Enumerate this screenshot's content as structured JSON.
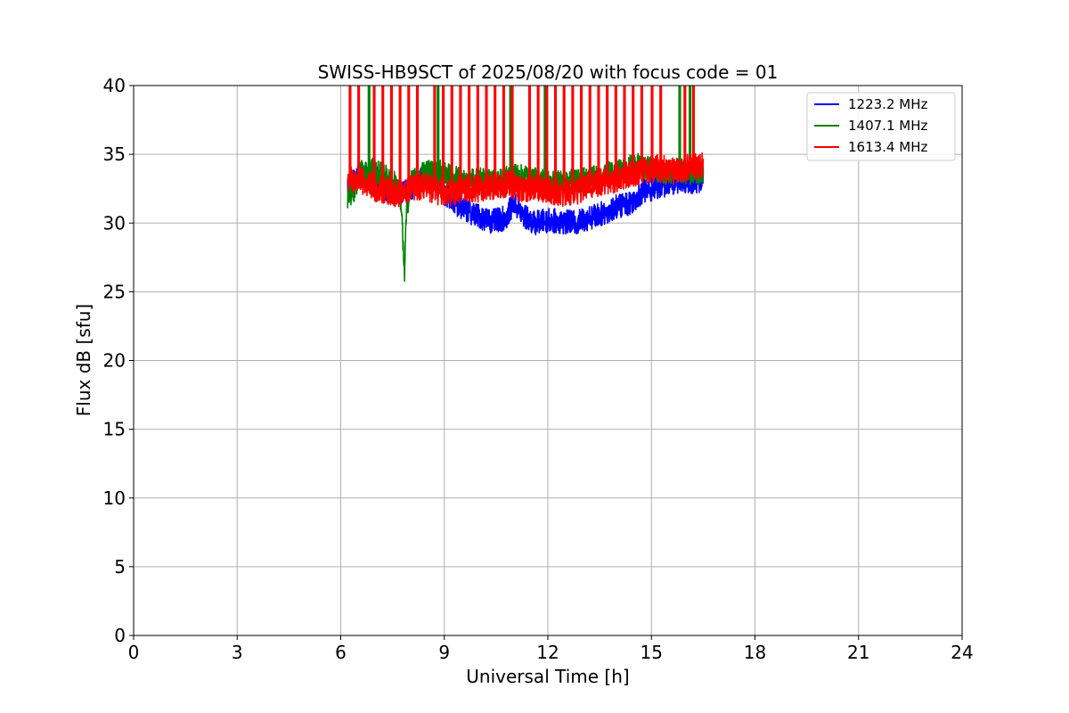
{
  "chart_data": {
    "type": "line",
    "title": "SWISS-HB9SCT of 2025/08/20 with focus code = 01",
    "xlabel": "Universal Time [h]",
    "ylabel": "Flux dB [sfu]",
    "xlim": [
      0,
      24
    ],
    "ylim": [
      0,
      40
    ],
    "xticks": [
      0,
      3,
      6,
      9,
      12,
      15,
      18,
      21,
      24
    ],
    "yticks": [
      0,
      5,
      10,
      15,
      20,
      25,
      30,
      35,
      40
    ],
    "grid": true,
    "legend_position": "top-right",
    "x_start": 6.2,
    "x_end": 16.5,
    "series": [
      {
        "name": "1223.2 MHz",
        "color": "#0000ff",
        "points": [
          [
            6.2,
            32.8
          ],
          [
            6.6,
            33.5
          ],
          [
            7.0,
            33.4
          ],
          [
            7.4,
            32.3
          ],
          [
            7.8,
            32.2
          ],
          [
            8.0,
            32.5
          ],
          [
            8.4,
            33.4
          ],
          [
            8.8,
            33.3
          ],
          [
            9.0,
            32.2
          ],
          [
            9.3,
            31.5
          ],
          [
            9.6,
            31.0
          ],
          [
            10.0,
            30.5
          ],
          [
            10.4,
            30.1
          ],
          [
            10.8,
            30.4
          ],
          [
            11.0,
            31.5
          ],
          [
            11.3,
            30.5
          ],
          [
            11.6,
            30.0
          ],
          [
            12.0,
            30.2
          ],
          [
            12.4,
            30.1
          ],
          [
            12.8,
            30.0
          ],
          [
            13.2,
            30.4
          ],
          [
            13.6,
            30.7
          ],
          [
            14.0,
            31.2
          ],
          [
            14.4,
            31.5
          ],
          [
            14.7,
            32.2
          ],
          [
            15.0,
            32.5
          ],
          [
            15.4,
            32.8
          ],
          [
            15.8,
            33.1
          ],
          [
            16.2,
            33.0
          ],
          [
            16.5,
            33.2
          ]
        ],
        "noise": 0.9,
        "spikes": []
      },
      {
        "name": "1407.1 MHz",
        "color": "#008000",
        "points": [
          [
            6.2,
            31.8
          ],
          [
            6.4,
            32.5
          ],
          [
            6.6,
            33.8
          ],
          [
            7.0,
            33.8
          ],
          [
            7.4,
            33.2
          ],
          [
            7.7,
            32.6
          ],
          [
            7.8,
            29.0
          ],
          [
            7.85,
            26.4
          ],
          [
            7.9,
            30.5
          ],
          [
            8.0,
            32.8
          ],
          [
            8.4,
            33.6
          ],
          [
            8.8,
            33.8
          ],
          [
            9.2,
            33.4
          ],
          [
            9.6,
            33.0
          ],
          [
            10.0,
            33.2
          ],
          [
            10.4,
            33.0
          ],
          [
            10.8,
            33.3
          ],
          [
            11.0,
            33.5
          ],
          [
            11.4,
            33.3
          ],
          [
            11.8,
            33.1
          ],
          [
            12.2,
            32.9
          ],
          [
            12.6,
            33.0
          ],
          [
            13.0,
            33.1
          ],
          [
            13.4,
            33.4
          ],
          [
            13.8,
            33.6
          ],
          [
            14.2,
            33.9
          ],
          [
            14.6,
            34.2
          ],
          [
            15.0,
            33.9
          ],
          [
            15.4,
            33.6
          ],
          [
            15.8,
            33.9
          ],
          [
            16.2,
            33.6
          ],
          [
            16.5,
            33.8
          ]
        ],
        "noise": 0.9,
        "spikes": [
          6.8,
          8.8,
          10.9,
          11.9,
          15.8,
          16.1
        ]
      },
      {
        "name": "1613.4 MHz",
        "color": "#ff0000",
        "points": [
          [
            6.2,
            33.2
          ],
          [
            6.6,
            33.0
          ],
          [
            7.0,
            32.5
          ],
          [
            7.4,
            32.3
          ],
          [
            7.8,
            32.0
          ],
          [
            8.0,
            32.5
          ],
          [
            8.4,
            32.7
          ],
          [
            8.8,
            32.3
          ],
          [
            9.2,
            32.2
          ],
          [
            9.6,
            32.6
          ],
          [
            10.0,
            32.4
          ],
          [
            10.4,
            32.6
          ],
          [
            10.8,
            32.9
          ],
          [
            11.2,
            32.5
          ],
          [
            11.6,
            32.6
          ],
          [
            12.0,
            32.4
          ],
          [
            12.4,
            32.2
          ],
          [
            12.8,
            32.3
          ],
          [
            13.2,
            32.8
          ],
          [
            13.6,
            33.0
          ],
          [
            14.0,
            33.2
          ],
          [
            14.4,
            33.6
          ],
          [
            14.8,
            33.8
          ],
          [
            15.2,
            34.0
          ],
          [
            15.6,
            33.8
          ],
          [
            16.0,
            34.0
          ],
          [
            16.5,
            34.3
          ]
        ],
        "noise": 1.0,
        "spikes": [
          6.25,
          6.5,
          6.95,
          7.2,
          7.45,
          7.7,
          7.95,
          8.2,
          8.7,
          8.95,
          9.2,
          9.45,
          9.7,
          9.95,
          10.2,
          10.45,
          10.7,
          10.95,
          11.45,
          11.7,
          11.95,
          12.2,
          12.45,
          12.7,
          12.95,
          13.2,
          13.45,
          13.7,
          13.95,
          14.2,
          14.45,
          14.7,
          15.0,
          15.25,
          15.95,
          16.2
        ]
      }
    ]
  }
}
